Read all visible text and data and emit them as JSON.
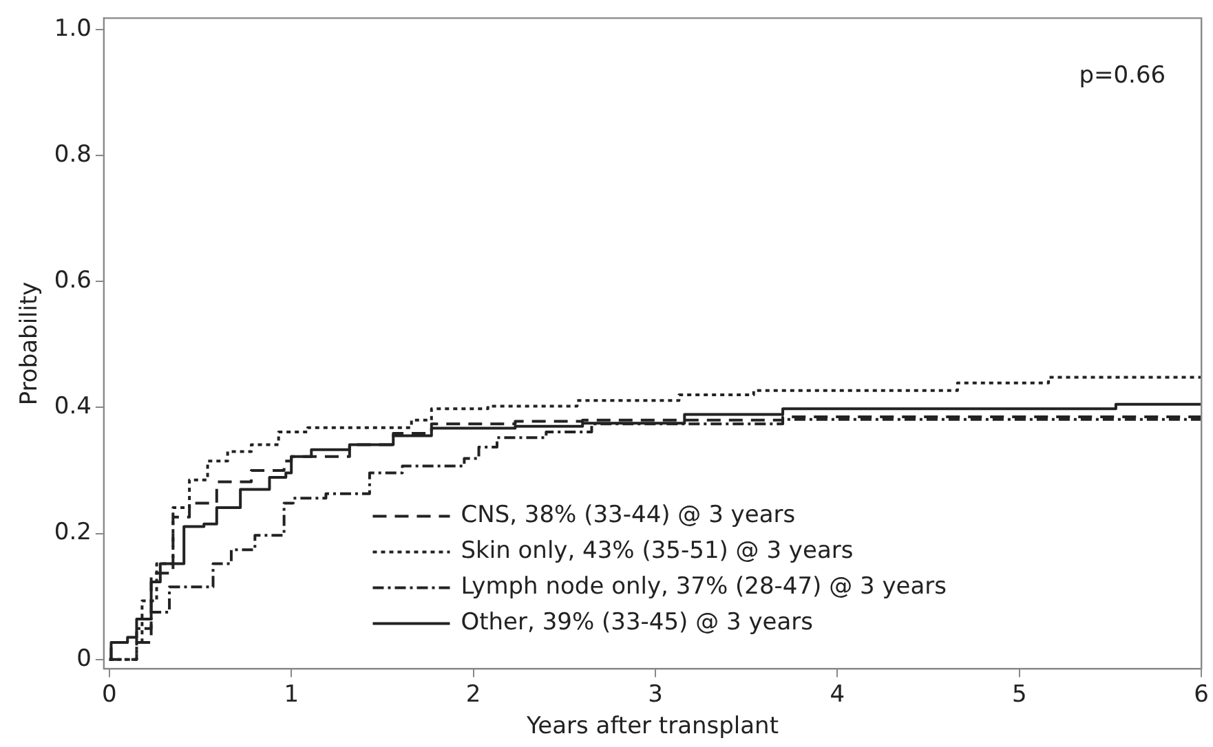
{
  "chart_data": {
    "type": "step",
    "xlabel": "Years after transplant",
    "ylabel": "Probability",
    "xlim": [
      -0.03,
      6
    ],
    "ylim": [
      -0.015,
      1.018
    ],
    "xticks": [
      0,
      1,
      2,
      3,
      4,
      5,
      6
    ],
    "yticks": [
      0,
      0.2,
      0.4,
      0.6,
      0.8,
      {
        "value": 1,
        "label": "1.0"
      }
    ],
    "grid": false,
    "legend": "bottom",
    "marker": "none",
    "annotations": [
      "p=0.66"
    ],
    "series": [
      {
        "name": "CNS, 38% (33-44) @ 3 years",
        "color": "#222222",
        "line_style": "dashed",
        "x": [
          0,
          0.01,
          0.23,
          0.35,
          0.44,
          0.59,
          0.78,
          0.96,
          1.0,
          1.32,
          1.56,
          1.77,
          2.23,
          2.6,
          3.7,
          6
        ],
        "values": [
          0,
          0.027,
          0.137,
          0.226,
          0.248,
          0.282,
          0.3,
          0.315,
          0.322,
          0.341,
          0.359,
          0.374,
          0.378,
          0.38,
          0.385,
          0.387
        ]
      },
      {
        "name": "Skin only, 43% (35-51) @ 3 years",
        "color": "#222222",
        "line_style": "dotted",
        "x": [
          0,
          0.15,
          0.18,
          0.26,
          0.35,
          0.44,
          0.54,
          0.65,
          0.78,
          0.93,
          1.09,
          1.51,
          1.66,
          1.77,
          2.08,
          2.57,
          3.13,
          3.54,
          4.66,
          5.16,
          6
        ],
        "values": [
          0,
          0.027,
          0.093,
          0.152,
          0.241,
          0.285,
          0.315,
          0.33,
          0.341,
          0.361,
          0.368,
          0.368,
          0.38,
          0.398,
          0.402,
          0.411,
          0.42,
          0.427,
          0.439,
          0.448,
          0.448
        ]
      },
      {
        "name": "Lymph node only, 37% (28-47) @ 3 years",
        "color": "#222222",
        "line_style": "dashdot",
        "x": [
          0,
          0.15,
          0.23,
          0.33,
          0.5,
          0.57,
          0.67,
          0.8,
          0.96,
          1.01,
          1.19,
          1.43,
          1.61,
          1.95,
          2.03,
          2.13,
          2.4,
          2.65,
          3.7,
          6
        ],
        "values": [
          0,
          0.049,
          0.075,
          0.115,
          0.115,
          0.152,
          0.174,
          0.197,
          0.248,
          0.256,
          0.263,
          0.296,
          0.307,
          0.319,
          0.337,
          0.352,
          0.361,
          0.374,
          0.381,
          0.385
        ]
      },
      {
        "name": "Other, 39% (33-45) @ 3 years",
        "color": "#222222",
        "line_style": "solid",
        "x": [
          0,
          0.01,
          0.1,
          0.15,
          0.23,
          0.28,
          0.41,
          0.52,
          0.59,
          0.72,
          0.88,
          0.97,
          1.0,
          1.11,
          1.32,
          1.56,
          1.77,
          2.23,
          2.6,
          3.16,
          3.7,
          5.53,
          6
        ],
        "values": [
          0,
          0.027,
          0.035,
          0.064,
          0.123,
          0.152,
          0.211,
          0.215,
          0.241,
          0.27,
          0.289,
          0.296,
          0.322,
          0.333,
          0.341,
          0.355,
          0.367,
          0.37,
          0.375,
          0.389,
          0.398,
          0.405,
          0.405
        ]
      }
    ]
  }
}
